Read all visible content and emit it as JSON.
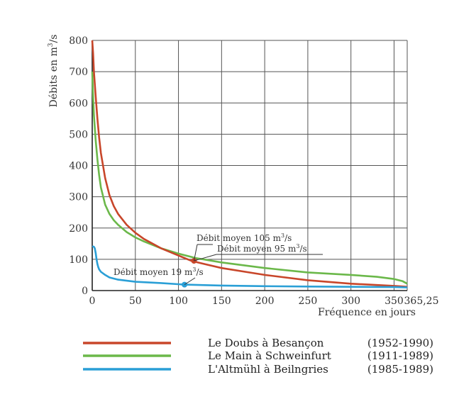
{
  "chart_data": {
    "type": "line",
    "xlabel": "Fréquence en jours",
    "ylabel_parts": [
      "Débits en m",
      "3",
      "/s"
    ],
    "xlim": [
      0,
      365.25
    ],
    "ylim": [
      0,
      800
    ],
    "grid": true,
    "x_ticks": [
      0,
      50,
      100,
      150,
      200,
      250,
      300,
      350,
      365.25
    ],
    "x_tick_labels": [
      "0",
      "50",
      "100",
      "150",
      "200",
      "250",
      "300",
      "350",
      "365,25"
    ],
    "y_ticks": [
      0,
      100,
      200,
      300,
      400,
      500,
      600,
      700,
      800
    ],
    "y_tick_labels": [
      "0",
      "100",
      "200",
      "300",
      "400",
      "500",
      "600",
      "700",
      "800"
    ],
    "series": [
      {
        "name": "Le Doubs à Besançon",
        "period": "(1952-1990)",
        "color": "#c8462a",
        "x": [
          0,
          1,
          2,
          4,
          6,
          8,
          10,
          15,
          20,
          25,
          30,
          40,
          50,
          60,
          80,
          100,
          115,
          130,
          150,
          200,
          250,
          300,
          350,
          365.25
        ],
        "y": [
          800,
          760,
          700,
          620,
          550,
          490,
          440,
          360,
          305,
          270,
          245,
          210,
          185,
          165,
          135,
          112,
          95,
          85,
          72,
          50,
          33,
          22,
          15,
          12
        ]
      },
      {
        "name": "Le Main à Schweinfurt",
        "period": "(1911-1989)",
        "color": "#6bb84a",
        "x": [
          0,
          1,
          2,
          4,
          6,
          8,
          10,
          15,
          20,
          25,
          30,
          40,
          50,
          60,
          80,
          100,
          120,
          150,
          200,
          250,
          300,
          330,
          350,
          360,
          365.25
        ],
        "y": [
          700,
          620,
          560,
          480,
          420,
          370,
          330,
          275,
          245,
          225,
          210,
          187,
          170,
          157,
          135,
          118,
          104,
          90,
          72,
          58,
          50,
          44,
          37,
          30,
          22
        ]
      },
      {
        "name": "L'Altmühl à Beilngries",
        "period": "(1985-1989)",
        "color": "#2a9fd6",
        "x": [
          0,
          1,
          2,
          3,
          4,
          5,
          6,
          7,
          8,
          10,
          15,
          20,
          30,
          50,
          80,
          107,
          150,
          200,
          250,
          300,
          350,
          365.25
        ],
        "y": [
          140,
          141,
          140,
          135,
          120,
          100,
          85,
          75,
          68,
          60,
          50,
          42,
          35,
          28,
          24,
          19,
          16,
          14,
          13,
          12,
          11,
          10
        ]
      }
    ],
    "annotations": [
      {
        "text_parts": [
          "Débit moyen 105 m",
          "3",
          "/s"
        ],
        "x": 118,
        "y": 95,
        "color": "#c8462a"
      },
      {
        "text_parts": [
          "Débit moyen 95 m",
          "3",
          "/s"
        ],
        "x": 118,
        "y": 95,
        "color": "#c8462a"
      },
      {
        "text_parts": [
          "Débit moyen 19 m",
          "3",
          "/s"
        ],
        "x": 107,
        "y": 19,
        "color": "#2a9fd6"
      }
    ]
  }
}
